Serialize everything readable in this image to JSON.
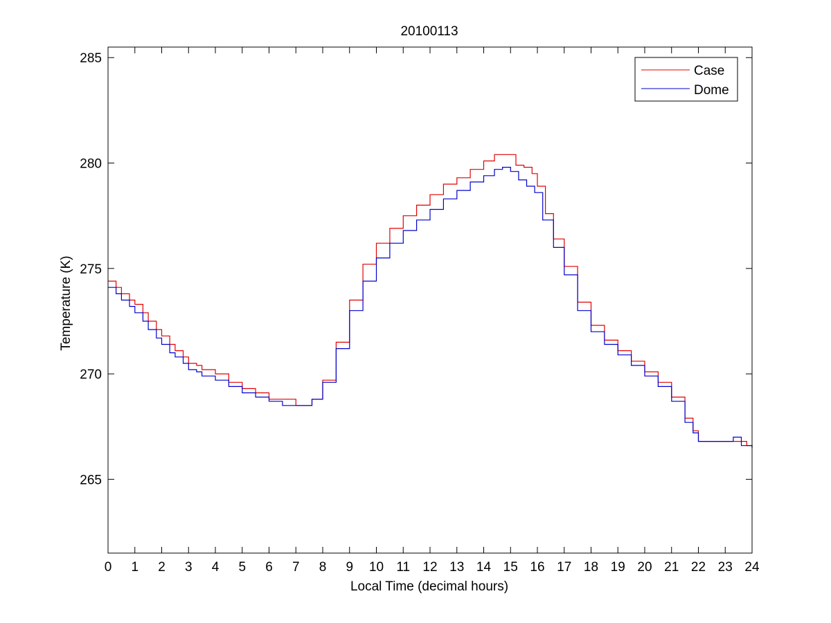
{
  "chart_data": {
    "type": "line",
    "title": "20100113",
    "xlabel": "Local Time (decimal hours)",
    "ylabel": "Temperature (K)",
    "xlim": [
      0,
      24
    ],
    "ylim": [
      261.5,
      285.5
    ],
    "xticks": [
      0,
      1,
      2,
      3,
      4,
      5,
      6,
      7,
      8,
      9,
      10,
      11,
      12,
      13,
      14,
      15,
      16,
      17,
      18,
      19,
      20,
      21,
      22,
      23,
      24
    ],
    "xtick_labels": [
      "0",
      "1",
      "2",
      "3",
      "4",
      "5",
      "6",
      "7",
      "8",
      "9",
      "10",
      "11",
      "12",
      "13",
      "14",
      "15",
      "16",
      "17",
      "18",
      "19",
      "20",
      "21",
      "22",
      "23",
      "24"
    ],
    "yticks": [
      265,
      270,
      275,
      280,
      285
    ],
    "ytick_labels": [
      "265",
      "270",
      "275",
      "280",
      "285"
    ],
    "grid": false,
    "legend_position": "top-right",
    "series": [
      {
        "name": "Case",
        "color": "#e00000",
        "step": true,
        "x": [
          0,
          0.3,
          0.5,
          0.8,
          1.0,
          1.3,
          1.5,
          1.8,
          2.0,
          2.3,
          2.5,
          2.8,
          3.0,
          3.3,
          3.5,
          4.0,
          4.5,
          5.0,
          5.5,
          6.0,
          6.5,
          7.0,
          7.3,
          7.6,
          8.0,
          8.5,
          9.0,
          9.5,
          10.0,
          10.5,
          11.0,
          11.5,
          12.0,
          12.5,
          13.0,
          13.5,
          14.0,
          14.4,
          14.9,
          15.2,
          15.5,
          15.8,
          16.0,
          16.3,
          16.6,
          17.0,
          17.5,
          18.0,
          18.5,
          19.0,
          19.5,
          20.0,
          20.5,
          21.0,
          21.5,
          21.8,
          22.0,
          22.5,
          23.0,
          23.5,
          23.8,
          24.0
        ],
        "y": [
          274.4,
          274.1,
          273.8,
          273.5,
          273.3,
          272.9,
          272.5,
          272.1,
          271.8,
          271.4,
          271.1,
          270.8,
          270.5,
          270.4,
          270.2,
          270.0,
          269.6,
          269.3,
          269.1,
          268.8,
          268.8,
          268.5,
          268.5,
          268.8,
          269.7,
          271.5,
          273.5,
          275.2,
          276.2,
          276.9,
          277.5,
          278.0,
          278.5,
          279.0,
          279.3,
          279.7,
          280.1,
          280.4,
          280.4,
          279.9,
          279.8,
          279.5,
          278.9,
          277.6,
          276.4,
          275.1,
          273.4,
          272.3,
          271.6,
          271.1,
          270.6,
          270.1,
          269.6,
          268.9,
          267.9,
          267.3,
          266.8,
          266.8,
          266.8,
          266.8,
          266.6,
          266.5
        ]
      },
      {
        "name": "Dome",
        "color": "#0000cc",
        "step": true,
        "x": [
          0,
          0.3,
          0.5,
          0.8,
          1.0,
          1.3,
          1.5,
          1.8,
          2.0,
          2.3,
          2.5,
          2.8,
          3.0,
          3.3,
          3.5,
          4.0,
          4.5,
          5.0,
          5.5,
          6.0,
          6.5,
          7.0,
          7.3,
          7.6,
          8.0,
          8.5,
          9.0,
          9.5,
          10.0,
          10.5,
          11.0,
          11.5,
          12.0,
          12.5,
          13.0,
          13.5,
          14.0,
          14.4,
          14.7,
          15.0,
          15.3,
          15.6,
          15.9,
          16.2,
          16.6,
          17.0,
          17.5,
          18.0,
          18.5,
          19.0,
          19.5,
          20.0,
          20.5,
          21.0,
          21.5,
          21.8,
          22.0,
          22.5,
          23.0,
          23.3,
          23.6,
          24.0
        ],
        "y": [
          274.1,
          273.8,
          273.5,
          273.2,
          272.9,
          272.5,
          272.1,
          271.7,
          271.4,
          271.0,
          270.8,
          270.5,
          270.2,
          270.1,
          269.9,
          269.7,
          269.4,
          269.1,
          268.9,
          268.7,
          268.5,
          268.5,
          268.5,
          268.8,
          269.6,
          271.2,
          273.0,
          274.4,
          275.5,
          276.2,
          276.8,
          277.3,
          277.8,
          278.3,
          278.7,
          279.1,
          279.4,
          279.7,
          279.8,
          279.6,
          279.2,
          278.9,
          278.6,
          277.3,
          276.0,
          274.7,
          273.0,
          272.0,
          271.4,
          270.9,
          270.4,
          269.9,
          269.4,
          268.7,
          267.7,
          267.2,
          266.8,
          266.8,
          266.8,
          267.0,
          266.6,
          266.5
        ]
      }
    ]
  }
}
